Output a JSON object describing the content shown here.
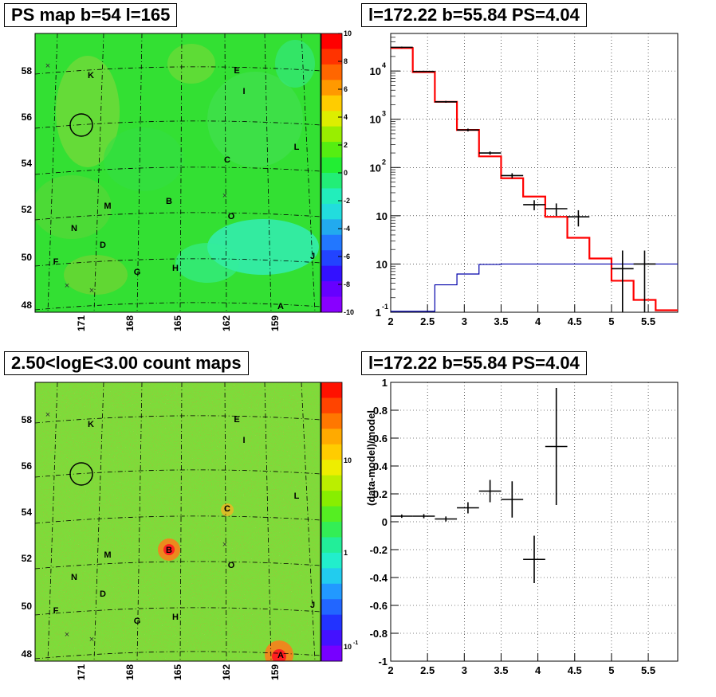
{
  "panels": {
    "map1_title": "PS map b=54 l=165",
    "map2_title": "2.50<logE<3.00 count maps",
    "spec_title": "l=172.22 b=55.84 PS=4.04",
    "res_title": "l=172.22 b=55.84 PS=4.04"
  },
  "map_axes": {
    "y_ticks": [
      "58",
      "56",
      "54",
      "52",
      "50",
      "48"
    ],
    "x_ticks": [
      "171",
      "168",
      "165",
      "162",
      "159"
    ]
  },
  "map_sources": [
    "K",
    "E",
    "I",
    "L",
    "C",
    "B",
    "M",
    "O",
    "N",
    "D",
    "F",
    "G",
    "H",
    "J",
    "A"
  ],
  "colorbar1": {
    "ticks": [
      "10",
      "8",
      "6",
      "4",
      "2",
      "0",
      "-2",
      "-4",
      "-6",
      "-8",
      "-10"
    ],
    "range": [
      -10,
      10
    ]
  },
  "colorbar2": {
    "ticks": [
      "10",
      "1",
      "10",
      "-1"
    ],
    "scale": "log"
  },
  "chart_data": [
    {
      "type": "line",
      "title": "l=172.22 b=55.84 PS=4.04",
      "xlim": [
        2,
        5.9
      ],
      "ylim": [
        0.1,
        60000
      ],
      "y_scale": "log",
      "x_ticks": [
        "2",
        "2.5",
        "3",
        "3.5",
        "4",
        "4.5",
        "5",
        "5.5"
      ],
      "y_ticks": [
        "1",
        "10",
        "10",
        "10",
        "10",
        "10"
      ],
      "y_tick_exponents": [
        "-1",
        "",
        "",
        "2",
        "3",
        "4"
      ],
      "grid": true,
      "series": [
        {
          "color": "#ff0000",
          "type": "step",
          "bins": [
            2.0,
            2.3,
            2.6,
            2.9,
            3.2,
            3.5,
            3.8,
            4.1,
            4.4,
            4.7,
            5.0,
            5.3,
            5.6,
            5.9
          ],
          "values": [
            30000,
            9500,
            2300,
            600,
            170,
            60,
            25,
            9.5,
            3.5,
            1.3,
            0.45,
            0.18,
            0.11
          ]
        },
        {
          "color": "#0000aa",
          "type": "step",
          "bins": [
            2.0,
            2.3,
            2.6,
            2.9,
            3.2,
            3.5,
            3.8,
            4.1,
            4.4,
            4.7,
            5.0,
            5.3,
            5.6,
            5.9
          ],
          "values": [
            0.105,
            0.105,
            0.37,
            0.62,
            0.98,
            1.0,
            1.0,
            1.0,
            1.0,
            1.0,
            1.0,
            1.0,
            1.0
          ]
        },
        {
          "color": "#000000",
          "type": "errorbar",
          "x": [
            2.15,
            2.45,
            2.75,
            3.05,
            3.35,
            3.65,
            3.95,
            4.25,
            4.55,
            4.85,
            5.15,
            5.45
          ],
          "xerr": 0.15,
          "y": [
            31000,
            9800,
            2300,
            600,
            200,
            68,
            17,
            14,
            9.5,
            0,
            0.8,
            1.0
          ],
          "ylo": [
            30000,
            9500,
            2200,
            560,
            185,
            60,
            13,
            10,
            6,
            0,
            0.1,
            0.1
          ],
          "yhi": [
            32000,
            10100,
            2400,
            640,
            215,
            76,
            21,
            18,
            13,
            0,
            1.9,
            1.9
          ]
        }
      ]
    },
    {
      "type": "scatter",
      "title": "l=172.22 b=55.84 PS=4.04",
      "ylabel": "(data-model)/model",
      "xlim": [
        2,
        5.9
      ],
      "ylim": [
        -1,
        1
      ],
      "x_ticks": [
        "2",
        "2.5",
        "3",
        "3.5",
        "4",
        "4.5",
        "5",
        "5.5"
      ],
      "y_ticks": [
        "1",
        "0.8",
        "0.6",
        "0.4",
        "0.2",
        "0",
        "-0.2",
        "-0.4",
        "-0.6",
        "-0.8",
        "-1"
      ],
      "grid": true,
      "x": [
        2.15,
        2.45,
        2.75,
        3.05,
        3.35,
        3.65,
        3.95,
        4.25
      ],
      "xerr": 0.15,
      "y": [
        0.04,
        0.04,
        0.02,
        0.1,
        0.22,
        0.16,
        -0.27,
        0.54
      ],
      "yerr": [
        0.012,
        0.015,
        0.018,
        0.04,
        0.08,
        0.13,
        0.17,
        0.42
      ]
    }
  ]
}
